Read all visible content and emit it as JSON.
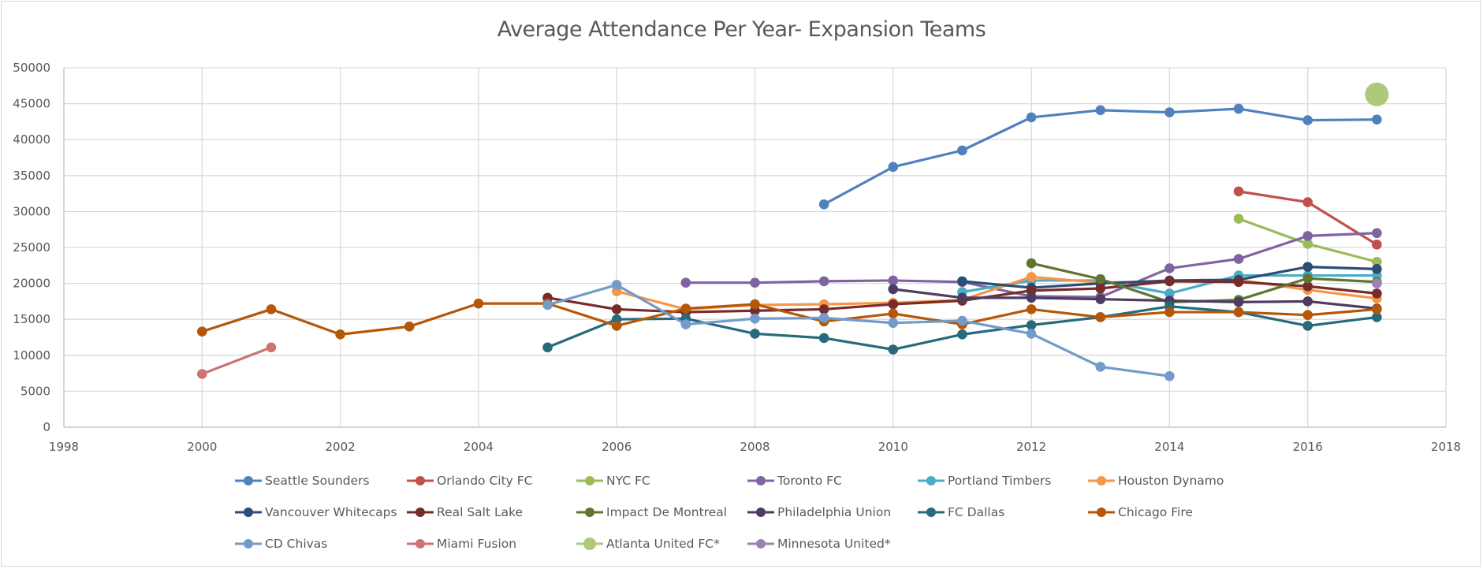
{
  "chart_data": {
    "type": "line",
    "title": "Average Attendance Per Year- Expansion Teams",
    "xlabel": "",
    "ylabel": "",
    "xlim": [
      1998,
      2018
    ],
    "ylim": [
      0,
      50000
    ],
    "x_ticks": [
      "1998",
      "2000",
      "2002",
      "2004",
      "2006",
      "2008",
      "2010",
      "2012",
      "2014",
      "2016",
      "2018"
    ],
    "y_ticks": [
      "0",
      "5000",
      "10000",
      "15000",
      "20000",
      "25000",
      "30000",
      "35000",
      "40000",
      "45000",
      "50000"
    ],
    "grid": true,
    "legend_position": "bottom",
    "series": [
      {
        "name": "Seattle Sounders",
        "color": "#4f81bd",
        "x": [
          2009,
          2010,
          2011,
          2012,
          2013,
          2014,
          2015,
          2016,
          2017
        ],
        "values": [
          31000,
          36200,
          38500,
          43100,
          44100,
          43800,
          44300,
          42700,
          42800
        ]
      },
      {
        "name": "Orlando City FC",
        "color": "#c0504d",
        "x": [
          2015,
          2016,
          2017
        ],
        "values": [
          32800,
          31300,
          25400
        ]
      },
      {
        "name": "NYC FC",
        "color": "#9bbb59",
        "x": [
          2015,
          2016,
          2017
        ],
        "values": [
          29000,
          25500,
          23000
        ]
      },
      {
        "name": "Toronto FC",
        "color": "#8064a2",
        "x": [
          2007,
          2008,
          2009,
          2010,
          2011,
          2012,
          2013,
          2014,
          2015,
          2016,
          2017
        ],
        "values": [
          20100,
          20100,
          20300,
          20400,
          20200,
          18200,
          18100,
          22100,
          23400,
          26600,
          27000
        ]
      },
      {
        "name": "Portland Timbers",
        "color": "#4bacc6",
        "x": [
          2011,
          2012,
          2013,
          2014,
          2015,
          2016,
          2017
        ],
        "values": [
          18800,
          20400,
          20400,
          18600,
          21100,
          21100,
          21100
        ]
      },
      {
        "name": "Houston Dynamo",
        "color": "#f79646",
        "x": [
          2006,
          2007,
          2008,
          2009,
          2010,
          2011,
          2012,
          2013,
          2014,
          2015,
          2016,
          2017
        ],
        "values": [
          18900,
          16400,
          17000,
          17100,
          17300,
          17700,
          20900,
          20100,
          20300,
          20500,
          19100,
          17900
        ]
      },
      {
        "name": "Vancouver Whitecaps",
        "color": "#2c4d75",
        "x": [
          2011,
          2012,
          2013,
          2014,
          2015,
          2016,
          2017
        ],
        "values": [
          20300,
          19400,
          20000,
          20400,
          20500,
          22300,
          22000
        ]
      },
      {
        "name": "Real Salt Lake",
        "color": "#772c2a",
        "x": [
          2005,
          2006,
          2007,
          2008,
          2009,
          2010,
          2011,
          2012,
          2013,
          2014,
          2015,
          2016,
          2017
        ],
        "values": [
          18000,
          16400,
          16000,
          16200,
          16400,
          17100,
          17600,
          19000,
          19300,
          20300,
          20200,
          19600,
          18600
        ]
      },
      {
        "name": "Impact De Montreal",
        "color": "#5f7530",
        "x": [
          2012,
          2013,
          2014,
          2015,
          2016,
          2017
        ],
        "values": [
          22800,
          20600,
          17400,
          17700,
          20700,
          20200
        ]
      },
      {
        "name": "Philadelphia Union",
        "color": "#4d3b62",
        "x": [
          2010,
          2011,
          2012,
          2013,
          2014,
          2015,
          2016,
          2017
        ],
        "values": [
          19200,
          18000,
          18000,
          17800,
          17600,
          17400,
          17500,
          16500
        ]
      },
      {
        "name": "FC Dallas",
        "color": "#276a7c",
        "x": [
          2005,
          2006,
          2007,
          2008,
          2009,
          2010,
          2011,
          2012,
          2013,
          2014,
          2015,
          2016,
          2017
        ],
        "values": [
          11100,
          15000,
          15100,
          13000,
          12400,
          10800,
          12900,
          14200,
          15300,
          16800,
          16000,
          14100,
          15300
        ]
      },
      {
        "name": "Chicago Fire",
        "color": "#b65708",
        "x": [
          2000,
          2001,
          2002,
          2003,
          2004,
          2005,
          2006,
          2007,
          2008,
          2009,
          2010,
          2011,
          2012,
          2013,
          2014,
          2015,
          2016,
          2017
        ],
        "values": [
          13300,
          16400,
          12900,
          14000,
          17200,
          17200,
          14100,
          16500,
          17100,
          14700,
          15800,
          14300,
          16400,
          15300,
          16000,
          16000,
          15600,
          16400
        ]
      },
      {
        "name": "CD Chivas",
        "color": "#729aca",
        "x": [
          2005,
          2006,
          2007,
          2008,
          2009,
          2010,
          2011,
          2012,
          2013,
          2014
        ],
        "values": [
          17000,
          19800,
          14300,
          15100,
          15200,
          14500,
          14800,
          13000,
          8400,
          7100
        ]
      },
      {
        "name": "Miami Fusion",
        "color": "#cd7371",
        "x": [
          2000,
          2001
        ],
        "values": [
          7400,
          11100
        ]
      },
      {
        "name": "Atlanta United FC*",
        "color": "#afc97a",
        "x": [
          2017
        ],
        "values": [
          46300
        ],
        "large_marker": true
      },
      {
        "name": "Minnesota United*",
        "color": "#9983b5",
        "x": [
          2017
        ],
        "values": [
          20000
        ]
      }
    ]
  }
}
